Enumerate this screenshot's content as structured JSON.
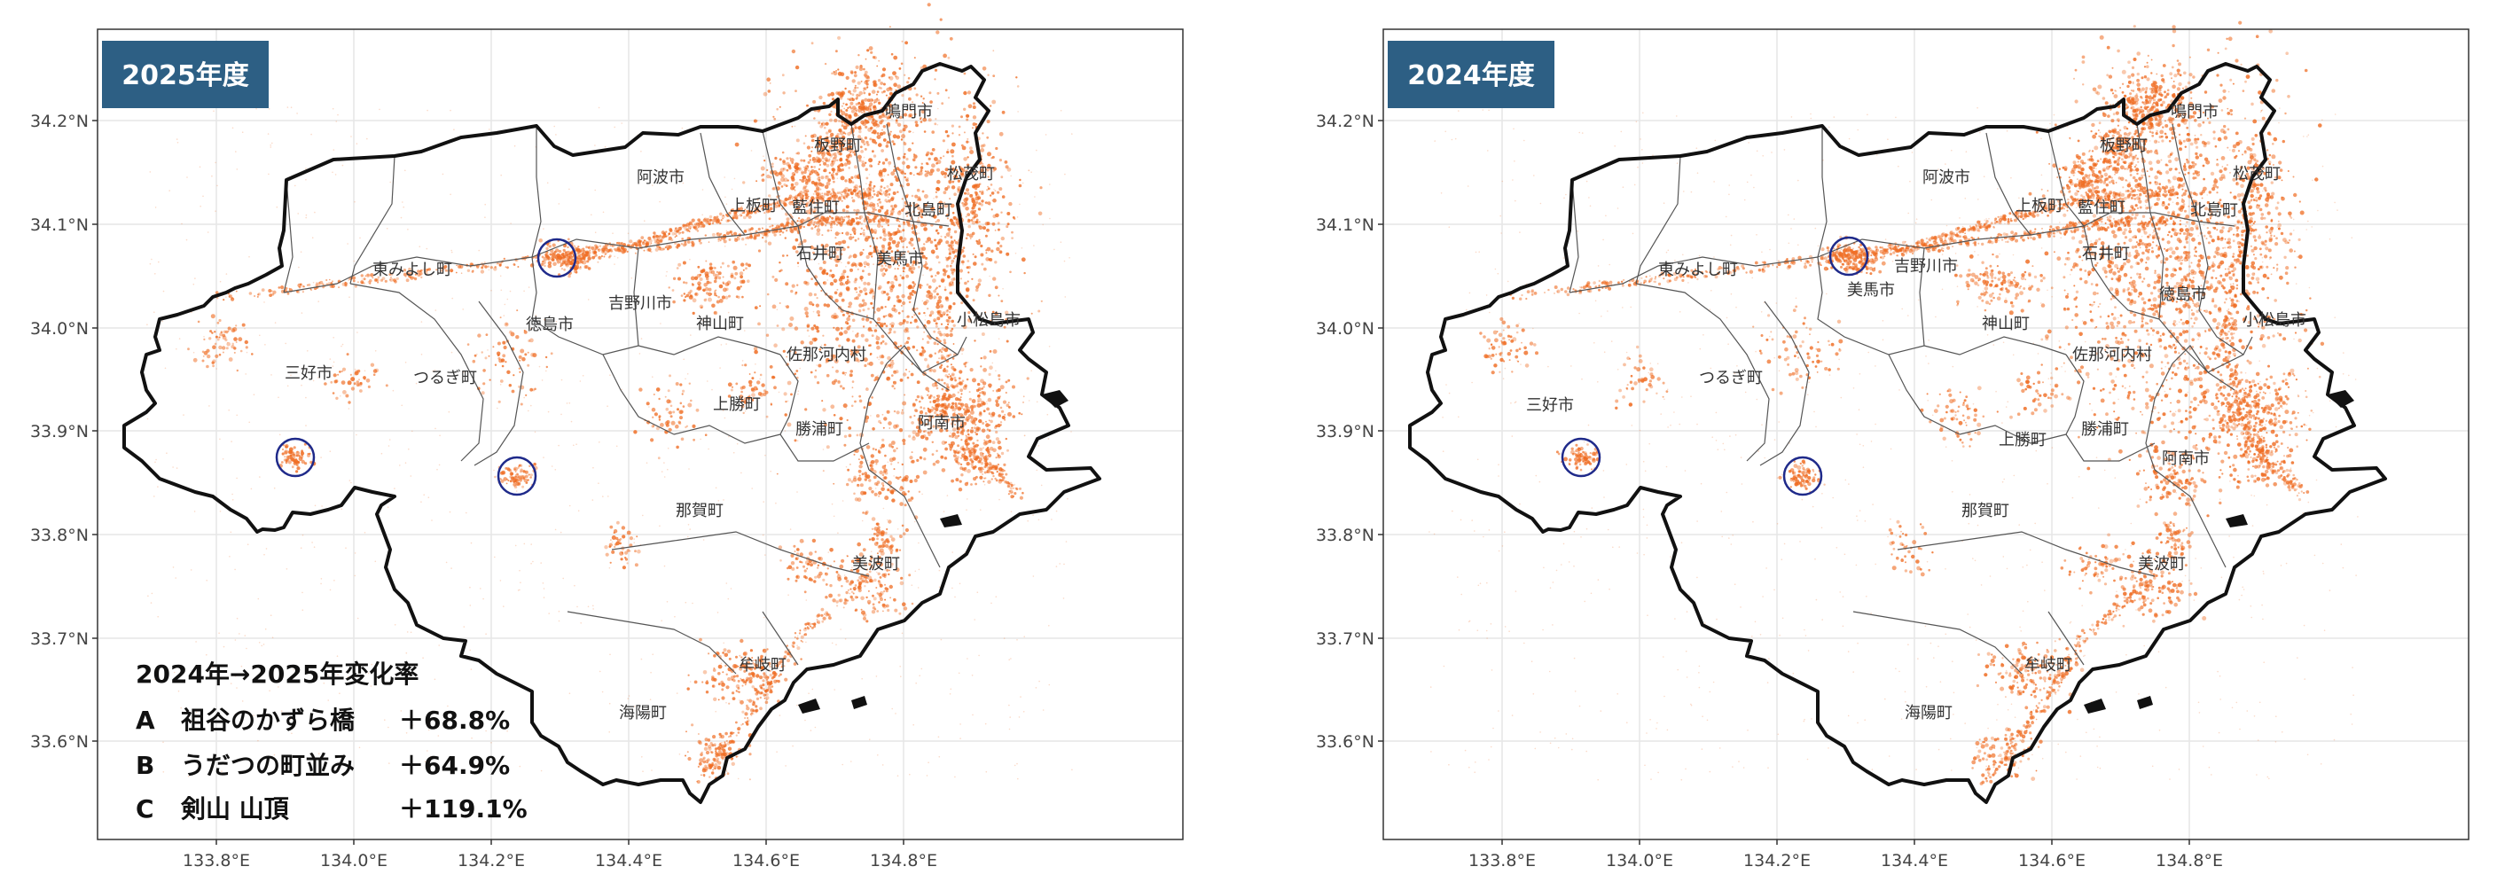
{
  "panels": [
    {
      "id": "p2025",
      "badge": "2025年度",
      "x_ticks": [
        "133.8°E",
        "134.0°E",
        "134.2°E",
        "134.4°E",
        "134.6°E",
        "134.8°E"
      ],
      "y_ticks": [
        "34.2°N",
        "34.1°N",
        "34.0°N",
        "33.9°N",
        "33.8°N",
        "33.7°N",
        "33.6°N"
      ],
      "municipalities": [
        {
          "name": "鳴門市"
        },
        {
          "name": "板野町"
        },
        {
          "name": "松茂町"
        },
        {
          "name": "阿波市"
        },
        {
          "name": "上板町"
        },
        {
          "name": "藍住町"
        },
        {
          "name": "北島町"
        },
        {
          "name": "東みよし町"
        },
        {
          "name": "石井町"
        },
        {
          "name": "徳島市"
        },
        {
          "name": "吉野川市"
        },
        {
          "name": "美馬市"
        },
        {
          "name": "神山町"
        },
        {
          "name": "小松島市"
        },
        {
          "name": "佐那河内村"
        },
        {
          "name": "三好市"
        },
        {
          "name": "つるぎ町"
        },
        {
          "name": "上勝町"
        },
        {
          "name": "勝浦町"
        },
        {
          "name": "阿南市"
        },
        {
          "name": "那賀町"
        },
        {
          "name": "美波町"
        },
        {
          "name": "牟岐町"
        },
        {
          "name": "海陽町"
        }
      ],
      "legend": {
        "title": "2024年→2025年変化率",
        "rows": [
          {
            "key": "A",
            "place": "祖谷のかずら橋",
            "rate": "＋68.8%"
          },
          {
            "key": "B",
            "place": "うだつの町並み",
            "rate": "＋64.9%"
          },
          {
            "key": "C",
            "place": "剣山 山頂",
            "rate": "＋119.1%"
          }
        ]
      }
    },
    {
      "id": "p2024",
      "badge": "2024年度",
      "x_ticks": [
        "133.8°E",
        "134.0°E",
        "134.2°E",
        "134.4°E",
        "134.6°E",
        "134.8°E"
      ],
      "y_ticks": [
        "34.2°N",
        "34.1°N",
        "34.0°N",
        "33.9°N",
        "33.8°N",
        "33.7°N",
        "33.6°N"
      ],
      "municipalities": [
        {
          "name": "鳴門市"
        },
        {
          "name": "板野町"
        },
        {
          "name": "松茂町"
        },
        {
          "name": "阿波市"
        },
        {
          "name": "上板町"
        },
        {
          "name": "藍住町"
        },
        {
          "name": "北島町"
        },
        {
          "name": "東みよし町"
        },
        {
          "name": "石井町"
        },
        {
          "name": "美馬市"
        },
        {
          "name": "吉野川市"
        },
        {
          "name": "徳島市"
        },
        {
          "name": "神山町"
        },
        {
          "name": "小松島市"
        },
        {
          "name": "佐那河内村"
        },
        {
          "name": "三好市"
        },
        {
          "name": "つるぎ町"
        },
        {
          "name": "上勝町"
        },
        {
          "name": "勝浦町"
        },
        {
          "name": "阿南市"
        },
        {
          "name": "那賀町"
        },
        {
          "name": "美波町"
        },
        {
          "name": "牟岐町"
        },
        {
          "name": "海陽町"
        }
      ]
    }
  ],
  "colors": {
    "badge": "#2d5f84",
    "density": "#ef6c22",
    "boundary": "#111111",
    "circle": "#1f2a8a",
    "grid": "#e6e6e6"
  }
}
